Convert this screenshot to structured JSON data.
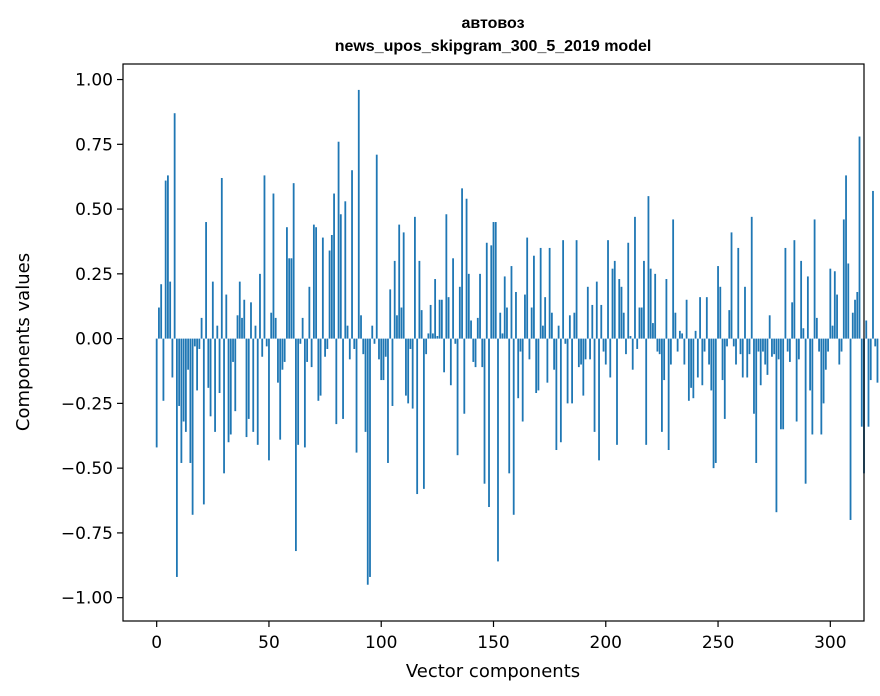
{
  "chart_data": {
    "type": "bar",
    "title_line1": "автовоз",
    "title_line2": "news_upos_skipgram_300_5_2019 model",
    "xlabel": "Vector components",
    "ylabel": "Components values",
    "xlim": [
      -15,
      315
    ],
    "ylim": [
      -1.09,
      1.06
    ],
    "xticks": [
      0,
      50,
      100,
      150,
      200,
      250,
      300
    ],
    "xtick_labels": [
      "0",
      "50",
      "100",
      "150",
      "200",
      "250",
      "300"
    ],
    "yticks": [
      1.0,
      0.75,
      0.5,
      0.25,
      0.0,
      -0.25,
      -0.5,
      -0.75,
      -1.0
    ],
    "ytick_labels": [
      "1.00",
      "0.75",
      "0.50",
      "0.25",
      "0.00",
      "−0.25",
      "−0.50",
      "−0.75",
      "−1.00"
    ],
    "bar_color": "#1f77b4",
    "values": [
      -0.42,
      0.12,
      0.21,
      -0.24,
      0.61,
      0.63,
      0.22,
      -0.15,
      0.87,
      -0.92,
      -0.26,
      -0.48,
      -0.32,
      -0.36,
      -0.12,
      -0.48,
      -0.68,
      -0.03,
      -0.2,
      -0.04,
      0.08,
      -0.64,
      0.45,
      -0.19,
      -0.3,
      0.22,
      -0.36,
      0.05,
      -0.21,
      0.62,
      -0.52,
      0.17,
      -0.4,
      -0.37,
      -0.09,
      -0.28,
      0.09,
      0.22,
      0.08,
      0.15,
      -0.38,
      -0.31,
      0.14,
      -0.36,
      0.05,
      -0.41,
      0.25,
      -0.07,
      0.63,
      -0.03,
      -0.47,
      0.1,
      0.56,
      0.08,
      -0.17,
      -0.39,
      -0.12,
      -0.09,
      0.43,
      0.31,
      0.31,
      0.6,
      -0.82,
      -0.41,
      -0.02,
      0.08,
      -0.42,
      -0.09,
      0.2,
      -0.11,
      0.44,
      0.43,
      -0.24,
      -0.22,
      0.39,
      -0.07,
      -0.04,
      0.34,
      0.4,
      0.56,
      -0.33,
      0.76,
      0.48,
      -0.31,
      0.53,
      0.05,
      -0.08,
      0.65,
      -0.04,
      -0.44,
      0.96,
      0.09,
      -0.06,
      -0.36,
      -0.95,
      -0.92,
      0.05,
      -0.02,
      0.71,
      -0.08,
      -0.16,
      -0.16,
      -0.07,
      -0.48,
      0.19,
      -0.26,
      0.3,
      0.09,
      0.44,
      0.12,
      0.41,
      -0.22,
      -0.25,
      -0.04,
      -0.27,
      0.47,
      -0.6,
      0.3,
      0.11,
      -0.58,
      -0.06,
      0.02,
      0.13,
      0.02,
      0.23,
      0.01,
      0.15,
      0.15,
      -0.13,
      0.48,
      0.16,
      -0.18,
      0.31,
      -0.02,
      -0.45,
      0.2,
      0.58,
      -0.29,
      0.54,
      0.25,
      0.07,
      -0.09,
      -0.11,
      0.08,
      0.25,
      -0.11,
      -0.56,
      0.37,
      -0.65,
      0.36,
      0.45,
      0.45,
      -0.86,
      0.1,
      0.02,
      0.24,
      0.12,
      -0.52,
      0.28,
      -0.68,
      0.18,
      -0.23,
      -0.05,
      -0.32,
      0.17,
      0.39,
      -0.08,
      0.12,
      0.32,
      -0.21,
      -0.2,
      0.35,
      0.05,
      0.16,
      -0.17,
      0.35,
      0.1,
      -0.12,
      -0.43,
      0.05,
      -0.4,
      0.38,
      -0.02,
      -0.25,
      0.09,
      -0.25,
      0.1,
      0.38,
      -0.11,
      -0.1,
      -0.22,
      -0.08,
      0.2,
      -0.08,
      0.13,
      -0.36,
      0.22,
      -0.47,
      0.13,
      -0.05,
      -0.1,
      0.38,
      -0.15,
      0.27,
      0.3,
      -0.41,
      0.23,
      0.2,
      0.1,
      -0.06,
      0.37,
      0.01,
      -0.12,
      0.47,
      -0.04,
      0.12,
      0.12,
      0.3,
      -0.41,
      0.55,
      0.27,
      0.06,
      0.25,
      -0.05,
      -0.06,
      -0.36,
      -0.16,
      0.23,
      -0.43,
      -0.1,
      0.46,
      0.1,
      -0.05,
      0.03,
      0.02,
      -0.1,
      0.15,
      -0.24,
      -0.19,
      -0.23,
      0.03,
      -0.15,
      0.16,
      -0.18,
      -0.05,
      0.16,
      -0.1,
      -0.2,
      -0.5,
      -0.48,
      0.28,
      0.2,
      -0.16,
      -0.31,
      -0.03,
      0.11,
      0.41,
      -0.03,
      -0.1,
      0.35,
      -0.06,
      -0.15,
      0.2,
      -0.15,
      -0.06,
      0.47,
      -0.29,
      -0.48,
      -0.05,
      -0.18,
      -0.05,
      -0.1,
      -0.14,
      0.09,
      -0.07,
      -0.06,
      -0.67,
      -0.08,
      -0.35,
      -0.35,
      0.35,
      -0.05,
      -0.09,
      0.14,
      0.38,
      -0.32,
      -0.08,
      0.3,
      0.04,
      -0.56,
      0.24,
      -0.2,
      -0.37,
      0.46,
      0.08,
      -0.05,
      -0.37,
      -0.25,
      -0.12,
      -0.05,
      0.27,
      0.05,
      0.26,
      0.17,
      -0.1,
      -0.05,
      0.46,
      0.63,
      0.29,
      -0.7,
      0.1,
      0.15,
      0.18,
      0.78,
      -0.34,
      -0.52,
      0.07,
      -0.34,
      -0.16,
      0.57,
      -0.03,
      -0.17
    ]
  }
}
